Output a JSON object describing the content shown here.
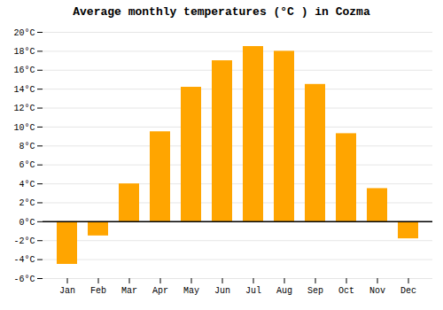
{
  "chart_data": {
    "type": "bar",
    "title": "Average monthly temperatures (°C ) in Cozma",
    "categories": [
      "Jan",
      "Feb",
      "Mar",
      "Apr",
      "May",
      "Jun",
      "Jul",
      "Aug",
      "Sep",
      "Oct",
      "Nov",
      "Dec"
    ],
    "values": [
      -4.5,
      -1.5,
      4.0,
      9.5,
      14.2,
      17.0,
      18.5,
      18.0,
      14.5,
      9.3,
      3.5,
      -1.8
    ],
    "color": "#FFA500",
    "ylim": [
      -6,
      20
    ],
    "yticks": [
      {
        "value": -6,
        "label": "-6°C"
      },
      {
        "value": -4,
        "label": "-4°C"
      },
      {
        "value": -2,
        "label": "-2°C"
      },
      {
        "value": 0,
        "label": "0°C"
      },
      {
        "value": 2,
        "label": "2°C"
      },
      {
        "value": 4,
        "label": "4°C"
      },
      {
        "value": 6,
        "label": "6°C"
      },
      {
        "value": 8,
        "label": "8°C"
      },
      {
        "value": 10,
        "label": "10°C"
      },
      {
        "value": 12,
        "label": "12°C"
      },
      {
        "value": 14,
        "label": "14°C"
      },
      {
        "value": 16,
        "label": "16°C"
      },
      {
        "value": 18,
        "label": "18°C"
      },
      {
        "value": 20,
        "label": "20°C"
      }
    ],
    "grid": true
  }
}
